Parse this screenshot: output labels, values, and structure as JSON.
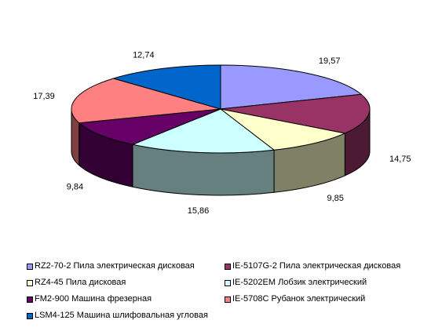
{
  "chart_data": {
    "type": "pie",
    "style": "3d",
    "title": "",
    "start": "top",
    "direction": "clockwise",
    "legend_position": "bottom",
    "slices": [
      {
        "name": "RZ2-70-2 Пила электрическая дисковая",
        "value": 19.57,
        "label": "19,57",
        "color": "#9999FF"
      },
      {
        "name": "IE-5107G-2 Пила электрическая дисковая",
        "value": 14.75,
        "label": "14,75",
        "color": "#993366"
      },
      {
        "name": "RZ4-45 Пила дисковая",
        "value": 9.85,
        "label": "9,85",
        "color": "#FFFFCC"
      },
      {
        "name": "IE-5202EM Лобзик электрический",
        "value": 15.86,
        "label": "15,86",
        "color": "#CCFFFF"
      },
      {
        "name": "FM2-900 Машина фрезерная",
        "value": 9.84,
        "label": "9,84",
        "color": "#660066"
      },
      {
        "name": "IE-5708C Рубанок электрический",
        "value": 17.39,
        "label": "17,39",
        "color": "#FF8080"
      },
      {
        "name": "LSM4-125 Машина шлифовальная угловая",
        "value": 12.74,
        "label": "12,74",
        "color": "#0066CC"
      }
    ]
  }
}
